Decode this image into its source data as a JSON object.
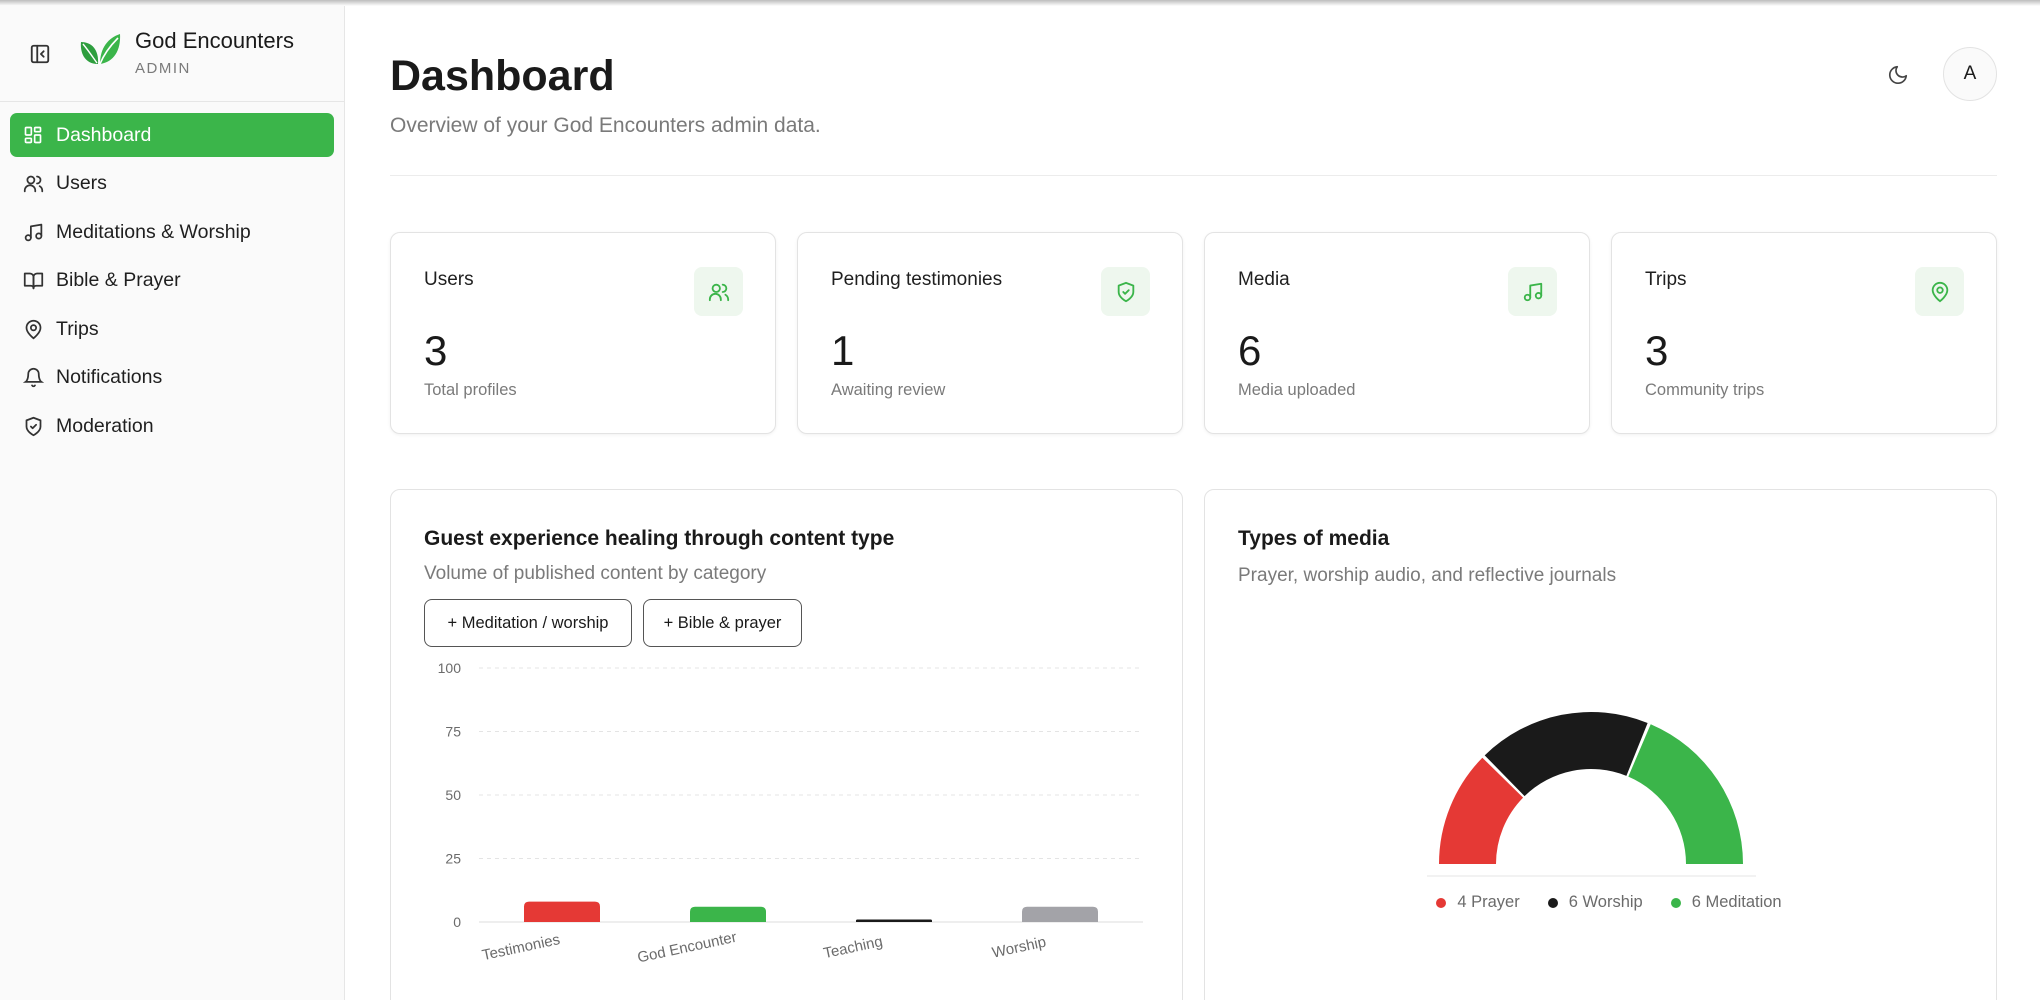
{
  "brand": {
    "title": "God Encounters",
    "subtitle": "ADMIN",
    "logo_icon": "leaf-icon"
  },
  "sidebar": {
    "items": [
      {
        "label": "Dashboard",
        "icon": "dashboard-icon",
        "active": true
      },
      {
        "label": "Users",
        "icon": "users-icon"
      },
      {
        "label": "Meditations & Worship",
        "icon": "music-note-icon"
      },
      {
        "label": "Bible & Prayer",
        "icon": "book-icon"
      },
      {
        "label": "Trips",
        "icon": "map-pin-icon"
      },
      {
        "label": "Notifications",
        "icon": "bell-icon"
      },
      {
        "label": "Moderation",
        "icon": "shield-check-icon"
      }
    ]
  },
  "header": {
    "title": "Dashboard",
    "subtitle": "Overview of your God Encounters admin data.",
    "avatar_initial": "A",
    "theme_icon": "moon-icon"
  },
  "stats": [
    {
      "label": "Users",
      "value": "3",
      "note": "Total profiles",
      "icon": "users-icon"
    },
    {
      "label": "Pending testimonies",
      "value": "1",
      "note": "Awaiting review",
      "icon": "shield-check-icon"
    },
    {
      "label": "Media",
      "value": "6",
      "note": "Media uploaded",
      "icon": "music-note-icon"
    },
    {
      "label": "Trips",
      "value": "3",
      "note": "Community trips",
      "icon": "map-pin-icon"
    }
  ],
  "colors": {
    "accent": "#3bb54a",
    "red": "#e53935",
    "black": "#1a1a1a",
    "gray": "#a3a3a8",
    "icon_bg": "#eef7ee"
  },
  "content_panel": {
    "title": "Guest experience healing through content type",
    "subtitle": "Volume of published content by category",
    "buttons": [
      "+ Meditation / worship",
      "+ Bible & prayer"
    ]
  },
  "media_panel": {
    "title": "Types of media",
    "subtitle": "Prayer, worship audio, and reflective journals",
    "legend": [
      "4 Prayer",
      "6 Worship",
      "6 Meditation"
    ]
  },
  "chart_data": [
    {
      "type": "bar",
      "categories": [
        "Testimonies",
        "God Encounter",
        "Teaching",
        "Worship"
      ],
      "values": [
        8,
        6,
        1,
        6
      ],
      "colors": [
        "#e53935",
        "#3bb54a",
        "#1a1a1a",
        "#a3a3a8"
      ],
      "yticks": [
        "0",
        "25",
        "50",
        "75",
        "100"
      ],
      "ylim": [
        0,
        100
      ],
      "grid": true
    },
    {
      "type": "pie",
      "variant": "half-donut",
      "labels": [
        "Prayer",
        "Worship",
        "Meditation"
      ],
      "values": [
        4,
        6,
        6
      ],
      "colors": [
        "#e53935",
        "#1a1a1a",
        "#3bb54a"
      ],
      "legend_position": "bottom"
    }
  ]
}
